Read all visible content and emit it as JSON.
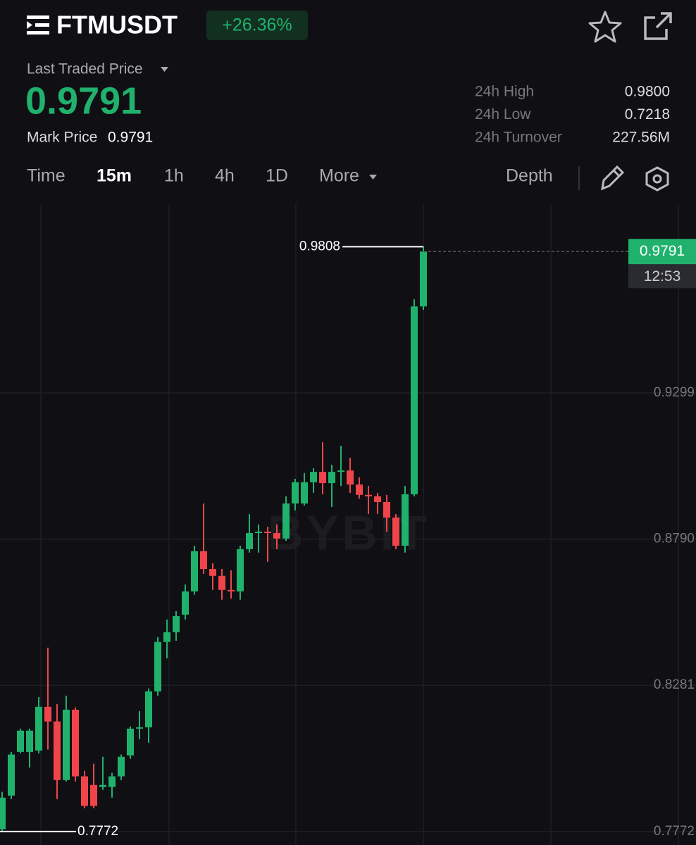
{
  "header": {
    "symbol": "FTMUSDT",
    "change": "+26.36%",
    "last_price_label": "Last Traded Price",
    "last_price": "0.9791",
    "mark_price_label": "Mark Price",
    "mark_price": "0.9791",
    "stats": [
      {
        "label": "24h High",
        "value": "0.9800"
      },
      {
        "label": "24h Low",
        "value": "0.7218"
      },
      {
        "label": "24h Turnover",
        "value": "227.56M"
      }
    ]
  },
  "tabs": [
    "Time",
    "15m",
    "1h",
    "4h",
    "1D",
    "More",
    "Depth"
  ],
  "chart_data": {
    "type": "candlestick",
    "watermark": "BYBIT",
    "ylim": [
      0.7725,
      0.9956
    ],
    "yticks": [
      0.7772,
      0.8281,
      {
        "value": 0.879,
        "label": "0.8790"
      },
      0.9299
    ],
    "grid": true,
    "up_color": "#20b26c",
    "down_color": "#ef454a",
    "high_marker": 0.9808,
    "low_marker": 0.7772,
    "last_price": 0.9791,
    "countdown": "12:53",
    "open": [
      0.778,
      0.7897,
      0.8049,
      0.8049,
      0.8054,
      0.8206,
      0.8155,
      0.7951,
      0.8196,
      0.7964,
      0.7934,
      0.7927,
      0.7927,
      0.7964,
      0.8037,
      0.813,
      0.8135,
      0.826,
      0.8432,
      0.8466,
      0.8527,
      0.8608,
      0.8748,
      0.8686,
      0.8662,
      0.8613,
      0.8608,
      0.8755,
      0.8811,
      0.8816,
      0.8811,
      0.8792,
      0.8914,
      0.8914,
      0.8988,
      0.9024,
      0.8985,
      0.9024,
      0.9029,
      0.898,
      0.8944,
      0.8939,
      0.8919,
      0.8865,
      0.8767,
      0.8946,
      0.96
    ],
    "high": [
      0.791,
      0.8049,
      0.813,
      0.813,
      0.824,
      0.8412,
      0.8216,
      0.8245,
      0.8204,
      0.7983,
      0.8008,
      0.8032,
      0.7976,
      0.804,
      0.8138,
      0.8191,
      0.827,
      0.8449,
      0.851,
      0.8539,
      0.8632,
      0.8767,
      0.8914,
      0.8706,
      0.8686,
      0.8681,
      0.8767,
      0.8877,
      0.8841,
      0.8833,
      0.8841,
      0.8939,
      0.9,
      0.902,
      0.9037,
      0.9127,
      0.9049,
      0.9115,
      0.9073,
      0.9005,
      0.8975,
      0.8951,
      0.8944,
      0.8877,
      0.8975,
      0.9625,
      0.9808
    ],
    "low": [
      0.7772,
      0.7885,
      0.8044,
      0.7995,
      0.8044,
      0.8057,
      0.7885,
      0.7946,
      0.7946,
      0.7853,
      0.7853,
      0.7917,
      0.789,
      0.7951,
      0.8025,
      0.8093,
      0.8081,
      0.8245,
      0.8375,
      0.8436,
      0.851,
      0.8596,
      0.8669,
      0.8613,
      0.8579,
      0.8583,
      0.8579,
      0.8743,
      0.8743,
      0.8711,
      0.8755,
      0.8784,
      0.889,
      0.8907,
      0.8951,
      0.8946,
      0.8902,
      0.8975,
      0.8951,
      0.8931,
      0.8877,
      0.8877,
      0.8816,
      0.8755,
      0.8743,
      0.8939,
      0.9588
    ],
    "close": [
      0.789,
      0.804,
      0.8123,
      0.8123,
      0.8206,
      0.8155,
      0.7951,
      0.8196,
      0.7964,
      0.7861,
      0.7861,
      0.7934,
      0.7964,
      0.8032,
      0.813,
      0.8135,
      0.826,
      0.8432,
      0.8466,
      0.8522,
      0.8608,
      0.8748,
      0.8686,
      0.8662,
      0.8613,
      0.8608,
      0.8755,
      0.8811,
      0.8816,
      0.8811,
      0.8792,
      0.8914,
      0.8988,
      0.8988,
      0.9024,
      0.8985,
      0.9024,
      0.9029,
      0.898,
      0.8944,
      0.8939,
      0.8919,
      0.8865,
      0.8767,
      0.8946,
      0.96,
      0.9791
    ]
  }
}
